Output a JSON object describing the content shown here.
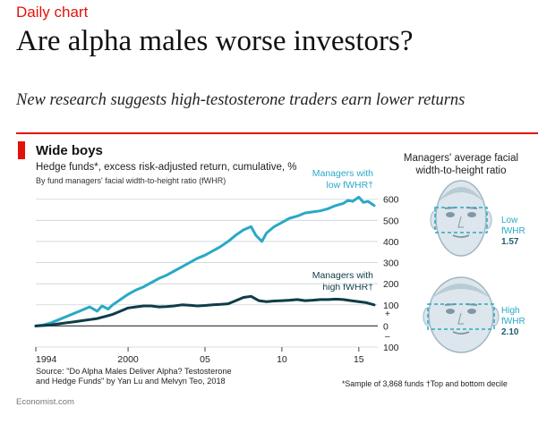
{
  "header": {
    "kicker": "Daily chart",
    "headline": "Are alpha males worse investors?",
    "standfirst": "New research suggests high-testosterone traders earn lower returns"
  },
  "chart_data": {
    "type": "line",
    "title": "Wide boys",
    "subtitle": "Hedge funds*, excess risk-adjusted return, cumulative, %",
    "subtitle2": "By fund managers' facial width-to-height ratio (fWHR)",
    "x_tick_labels": [
      "1994",
      "2000",
      "05",
      "10",
      "15"
    ],
    "x_ticks": [
      1994,
      2000,
      2005,
      2010,
      2015
    ],
    "xlim": [
      1994,
      2016
    ],
    "y_ticks": [
      600,
      500,
      400,
      300,
      200,
      100,
      0,
      -100
    ],
    "y_tick_labels": [
      "600",
      "500",
      "400",
      "300",
      "200",
      "100",
      "0",
      "100"
    ],
    "ylim": [
      -100,
      620
    ],
    "y_tick_sign_plus": "+",
    "y_tick_sign_minus": "–",
    "series": [
      {
        "name": "Managers with low fWHR†",
        "name_line1": "Managers with",
        "name_line2": "low fWHR†",
        "color": "#2aa9c6",
        "x": [
          1994.0,
          1994.5,
          1995.0,
          1995.5,
          1996.0,
          1996.5,
          1997.0,
          1997.5,
          1998.0,
          1998.3,
          1998.7,
          1999.0,
          1999.5,
          2000.0,
          2000.5,
          2001.0,
          2001.5,
          2002.0,
          2002.5,
          2003.0,
          2003.5,
          2004.0,
          2004.5,
          2005.0,
          2005.5,
          2006.0,
          2006.5,
          2007.0,
          2007.5,
          2008.0,
          2008.3,
          2008.7,
          2009.0,
          2009.5,
          2010.0,
          2010.5,
          2011.0,
          2011.5,
          2012.0,
          2012.5,
          2013.0,
          2013.5,
          2014.0,
          2014.3,
          2014.6,
          2015.0,
          2015.3,
          2015.6,
          2016.0
        ],
        "y": [
          0,
          5,
          15,
          30,
          45,
          60,
          75,
          90,
          70,
          95,
          80,
          100,
          125,
          150,
          170,
          185,
          205,
          225,
          240,
          260,
          280,
          300,
          320,
          335,
          355,
          375,
          400,
          430,
          455,
          470,
          430,
          400,
          440,
          470,
          490,
          510,
          520,
          535,
          540,
          545,
          555,
          570,
          580,
          595,
          590,
          610,
          585,
          590,
          570
        ]
      },
      {
        "name": "Managers with high fWHR†",
        "name_line1": "Managers with",
        "name_line2": "high fWHR†",
        "color": "#0e3c47",
        "x": [
          1994.0,
          1994.5,
          1995.0,
          1995.5,
          1996.0,
          1996.5,
          1997.0,
          1997.5,
          1998.0,
          1998.5,
          1999.0,
          1999.5,
          2000.0,
          2000.5,
          2001.0,
          2001.5,
          2002.0,
          2002.5,
          2003.0,
          2003.5,
          2004.0,
          2004.5,
          2005.0,
          2005.5,
          2006.0,
          2006.5,
          2007.0,
          2007.5,
          2008.0,
          2008.5,
          2009.0,
          2009.5,
          2010.0,
          2010.5,
          2011.0,
          2011.5,
          2012.0,
          2012.5,
          2013.0,
          2013.5,
          2014.0,
          2014.5,
          2015.0,
          2015.5,
          2016.0
        ],
        "y": [
          0,
          2,
          5,
          10,
          15,
          20,
          25,
          30,
          35,
          45,
          55,
          70,
          85,
          90,
          95,
          95,
          90,
          92,
          95,
          100,
          98,
          95,
          97,
          100,
          102,
          105,
          120,
          135,
          140,
          120,
          115,
          118,
          120,
          122,
          125,
          120,
          122,
          125,
          125,
          127,
          125,
          120,
          115,
          110,
          100
        ]
      }
    ],
    "grid": true,
    "legend": "inline labels near line ends"
  },
  "faces": {
    "title_line1": "Managers' average facial",
    "title_line2": "width-to-height ratio",
    "low": {
      "label1": "Low",
      "label2": "fWHR",
      "value": "1.57"
    },
    "high": {
      "label1": "High",
      "label2": "fWHR",
      "value": "2.10"
    },
    "skin_color": "#dce6ec",
    "outline_color": "#9fb6c2",
    "box_color": "#2aa9c6"
  },
  "footer": {
    "source_line1": "Source: \"Do Alpha Males Deliver Alpha? Testosterone",
    "source_line2": "and Hedge Funds\" by Yan Lu and Melvyn Teo, 2018",
    "footnote": "*Sample of 3,868 funds   †Top and bottom decile",
    "credit": "Economist.com"
  }
}
